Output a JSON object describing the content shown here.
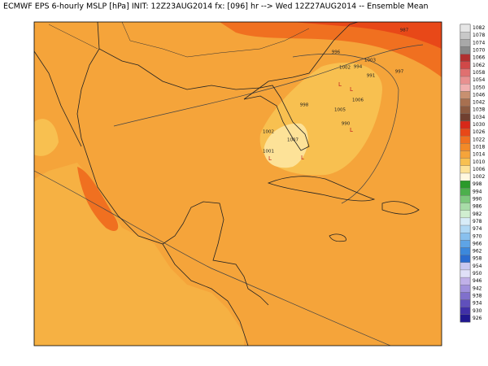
{
  "title": "ECMWF EPS 6-hourly MSLP [hPa] INIT: 12Z23AUG2014 fx: [096] hr --> Wed 12Z27AUG2014 -- Ensemble Mean",
  "colorbar": {
    "levels": [
      1082,
      1078,
      1074,
      1070,
      1066,
      1062,
      1058,
      1054,
      1050,
      1046,
      1042,
      1038,
      1034,
      1030,
      1026,
      1022,
      1018,
      1014,
      1010,
      1006,
      1002,
      998,
      994,
      990,
      986,
      982,
      978,
      974,
      970,
      966,
      962,
      958,
      954,
      950,
      946,
      942,
      938,
      934,
      930,
      926
    ],
    "colors": [
      "#e6e6e6",
      "#c8c8c8",
      "#a8a8a8",
      "#888888",
      "#b03030",
      "#d04848",
      "#e07070",
      "#e89090",
      "#f0b0b0",
      "#c89070",
      "#a87050",
      "#8c5a40",
      "#704030",
      "#d82818",
      "#e84818",
      "#f07020",
      "#f28a28",
      "#f5a43a",
      "#f8c050",
      "#fde298",
      "#fff8e0",
      "#2a9a2a",
      "#4cb04c",
      "#7cc87c",
      "#a8dca8",
      "#d0eed0",
      "#d8ecf8",
      "#b0d8f4",
      "#88c0ee",
      "#5ea4e6",
      "#3c88dc",
      "#2a6cd0",
      "#c8c8f0",
      "#e0e0f8",
      "#c0b0e8",
      "#a090dc",
      "#8070cc",
      "#6050bc",
      "#4030a8",
      "#201890"
    ]
  },
  "contour_labels": [
    "987",
    "997",
    "1003",
    "1002",
    "996",
    "994",
    "991",
    "1006",
    "1005",
    "990",
    "998",
    "1002",
    "1001",
    "1007",
    "L",
    "L",
    "L",
    "L",
    "L"
  ]
}
